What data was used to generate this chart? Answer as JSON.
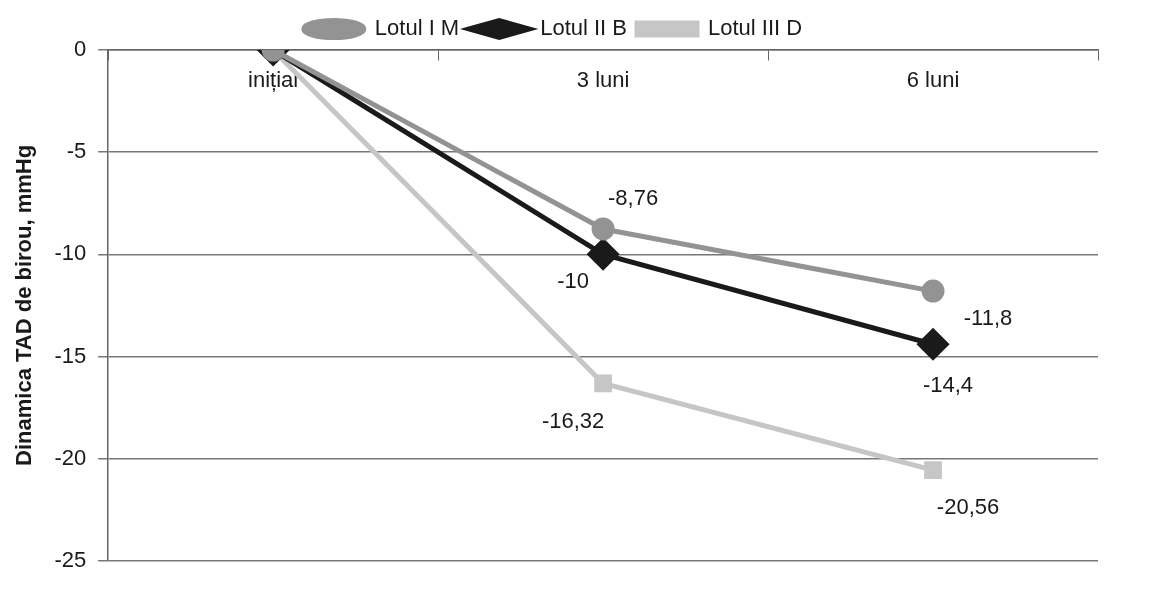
{
  "chart_data": {
    "type": "line",
    "ylabel": "Dinamica TAD de birou, mmHg",
    "categories": [
      "inițial",
      "3 luni",
      "6 luni"
    ],
    "series": [
      {
        "name": "Lotul I M",
        "color": "#939393",
        "marker": "circle",
        "values": [
          0,
          -8.76,
          -11.8
        ],
        "value_labels": [
          null,
          "-8,76",
          "-11,8"
        ]
      },
      {
        "name": "Lotul II B",
        "color": "#1a1a1a",
        "marker": "diamond",
        "values": [
          0,
          -10,
          -14.4
        ],
        "value_labels": [
          null,
          "-10",
          "-14,4"
        ]
      },
      {
        "name": "Lotul III D",
        "color": "#c6c6c6",
        "marker": "square",
        "values": [
          0,
          -16.32,
          -20.56
        ],
        "value_labels": [
          null,
          "-16,32",
          "-20,56"
        ]
      }
    ],
    "ylim": [
      -25,
      0
    ],
    "yticks": [
      -25,
      -20,
      -15,
      -10,
      -5,
      0
    ],
    "grid": "y",
    "legend": "top"
  }
}
